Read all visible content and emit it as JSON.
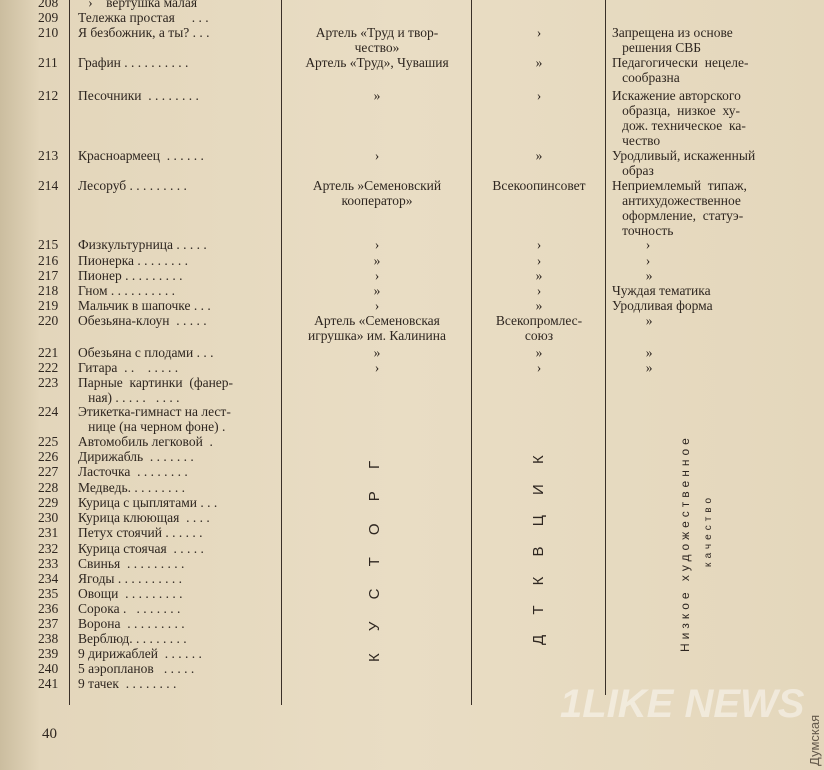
{
  "rows": [
    {
      "num": "208",
      "name": "   ›    вертушка малая",
      "maker": "",
      "org": "",
      "reason": ""
    },
    {
      "num": "209",
      "name": "Тележка простая     . . .",
      "maker": "",
      "org": "",
      "reason": ""
    },
    {
      "num": "210",
      "name": "Я безбожник, а ты? . . .",
      "maker": "Артель «Труд и твор-\nчество»",
      "org": "›",
      "reason": "Запрещена из основе\n   решения СВБ"
    },
    {
      "num": "211",
      "name": "Графин . . . . . . . . . .",
      "maker": "Артель «Труд», Чувашия",
      "org": "»",
      "reason": "Педагогически  нецеле-\n   сообразна"
    },
    {
      "num": "212",
      "name": "Песочники  . . . . . . . .",
      "maker": "»",
      "org": "›",
      "reason": "Искажение авторского\n   образца,  низкое  ху-\n   дож. техническое  ка-\n   чество"
    },
    {
      "num": "213",
      "name": "Красноармеец  . . . . . .",
      "maker": "›",
      "org": "»",
      "reason": "Уродливый, искаженный\n   образ"
    },
    {
      "num": "214",
      "name": "Лесоруб . . . . . . . . .",
      "maker": "Артель »Семеновский\nкооператор»",
      "org": "Всекоопинсовет",
      "reason": "Неприемлемый  типаж,\n   антихудожественное\n   оформление,  статуэ-\n   точность"
    },
    {
      "num": "215",
      "name": "Физкультурница . . . . .",
      "maker": "›",
      "org": "›",
      "reason": "          ›"
    },
    {
      "num": "216",
      "name": "Пионерка . . . . . . . .",
      "maker": "»",
      "org": "›",
      "reason": "          ›"
    },
    {
      "num": "217",
      "name": "Пионер . . . . . . . . .",
      "maker": "›",
      "org": "»",
      "reason": "          »"
    },
    {
      "num": "218",
      "name": "Гном . . . . . . . . . .",
      "maker": "»",
      "org": "›",
      "reason": "Чуждая тематика"
    },
    {
      "num": "219",
      "name": "Мальчик в шапочке . . .",
      "maker": "›",
      "org": "»",
      "reason": "Уродливая форма"
    },
    {
      "num": "220",
      "name": "Обезьяна-клоун  . . . . .",
      "maker": "Артель «Семеновская\nигрушка» им. Калинина",
      "org": "Всекопромлес-\nсоюз",
      "reason": "          »"
    },
    {
      "num": "221",
      "name": "Обезьяна с плодами . . .",
      "maker": "»",
      "org": "»",
      "reason": "          »"
    },
    {
      "num": "222",
      "name": "Гитара  . .    . . . . .",
      "maker": "›",
      "org": "›",
      "reason": "          »"
    },
    {
      "num": "223",
      "name": "Парные  картинки  (фанер-\n   ная) . . . . .   . . . .",
      "maker": "",
      "org": "",
      "reason": ""
    },
    {
      "num": "224",
      "name": "Этикетка-гимнаст на лест-\n   нице (на черном фоне) .",
      "maker": "",
      "org": "",
      "reason": ""
    },
    {
      "num": "225",
      "name": "Автомобиль легковой  .",
      "maker": "",
      "org": "",
      "reason": ""
    },
    {
      "num": "226",
      "name": "Дирижабль  . . . . . . .",
      "maker": "",
      "org": "",
      "reason": ""
    },
    {
      "num": "227",
      "name": "Ласточка  . . . . . . . .",
      "maker": "",
      "org": "",
      "reason": ""
    },
    {
      "num": "228",
      "name": "Медведь. . . . . . . . .",
      "maker": "",
      "org": "",
      "reason": ""
    },
    {
      "num": "229",
      "name": "Курица с цыплятами . . .",
      "maker": "",
      "org": "",
      "reason": ""
    },
    {
      "num": "230",
      "name": "Курица клюющая  . . . .",
      "maker": "",
      "org": "",
      "reason": ""
    },
    {
      "num": "231",
      "name": "Петух стоячий . . . . . .",
      "maker": "",
      "org": "",
      "reason": ""
    },
    {
      "num": "232",
      "name": "Курица стоячая  . . . . .",
      "maker": "",
      "org": "",
      "reason": ""
    },
    {
      "num": "233",
      "name": "Свинья  . . . . . . . . .",
      "maker": "",
      "org": "",
      "reason": ""
    },
    {
      "num": "234",
      "name": "Ягоды . . . . . . . . . .",
      "maker": "",
      "org": "",
      "reason": ""
    },
    {
      "num": "235",
      "name": "Овощи  . . . . . . . . .",
      "maker": "",
      "org": "",
      "reason": ""
    },
    {
      "num": "236",
      "name": "Сорока .   . . . . . . .",
      "maker": "",
      "org": "",
      "reason": ""
    },
    {
      "num": "237",
      "name": "Ворона  . . . . . . . . .",
      "maker": "",
      "org": "",
      "reason": ""
    },
    {
      "num": "238",
      "name": "Верблюд. . . . . . . . .",
      "maker": "",
      "org": "",
      "reason": ""
    },
    {
      "num": "239",
      "name": "9 дирижаблей  . . . . . .",
      "maker": "",
      "org": "",
      "reason": ""
    },
    {
      "num": "240",
      "name": "5 аэропланов   . . . . .",
      "maker": "",
      "org": "",
      "reason": ""
    },
    {
      "num": "241",
      "name": "9 тачек  . . . . . . . .",
      "maker": "",
      "org": "",
      "reason": ""
    }
  ],
  "vertical": {
    "maker": "К У С Т О Р Г",
    "org": "Д Т К В Ц И К",
    "reason_line1": "Низкое художественное",
    "reason_line2": "качество"
  },
  "page_number": "40",
  "watermark": {
    "brand": "1LIKE NEWS",
    "source": "Думская"
  }
}
